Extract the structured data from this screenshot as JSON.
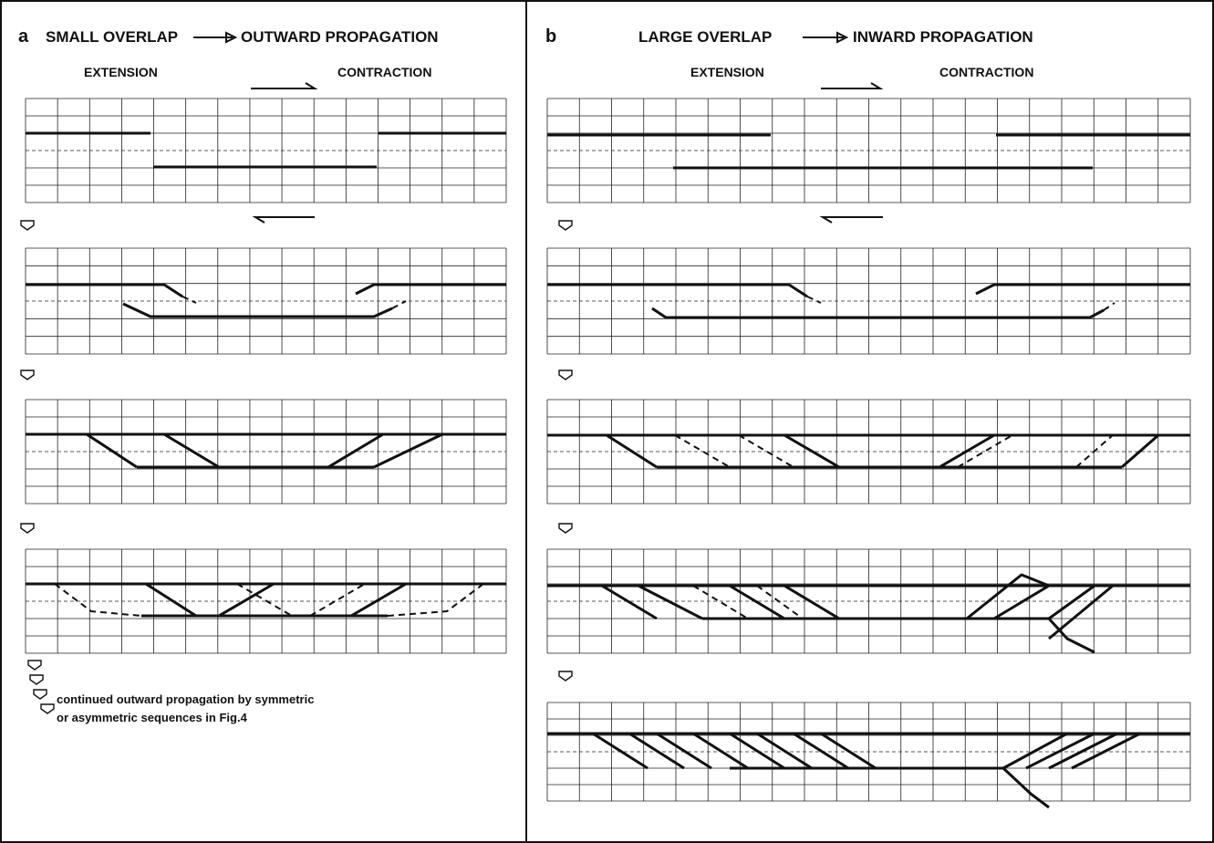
{
  "panels": [
    {
      "letter": "a",
      "title_left": "SMALL OVERLAP",
      "title_right": "OUTWARD PROPAGATION",
      "label_left": "EXTENSION",
      "label_right": "CONTRACTION",
      "note": [
        "continued outward propagation by symmetric",
        "or asymmetric sequences in Fig.4"
      ]
    },
    {
      "letter": "b",
      "title_left": "LARGE OVERLAP",
      "title_right": "INWARD PROPAGATION",
      "label_left": "EXTENSION",
      "label_right": "CONTRACTION"
    }
  ]
}
